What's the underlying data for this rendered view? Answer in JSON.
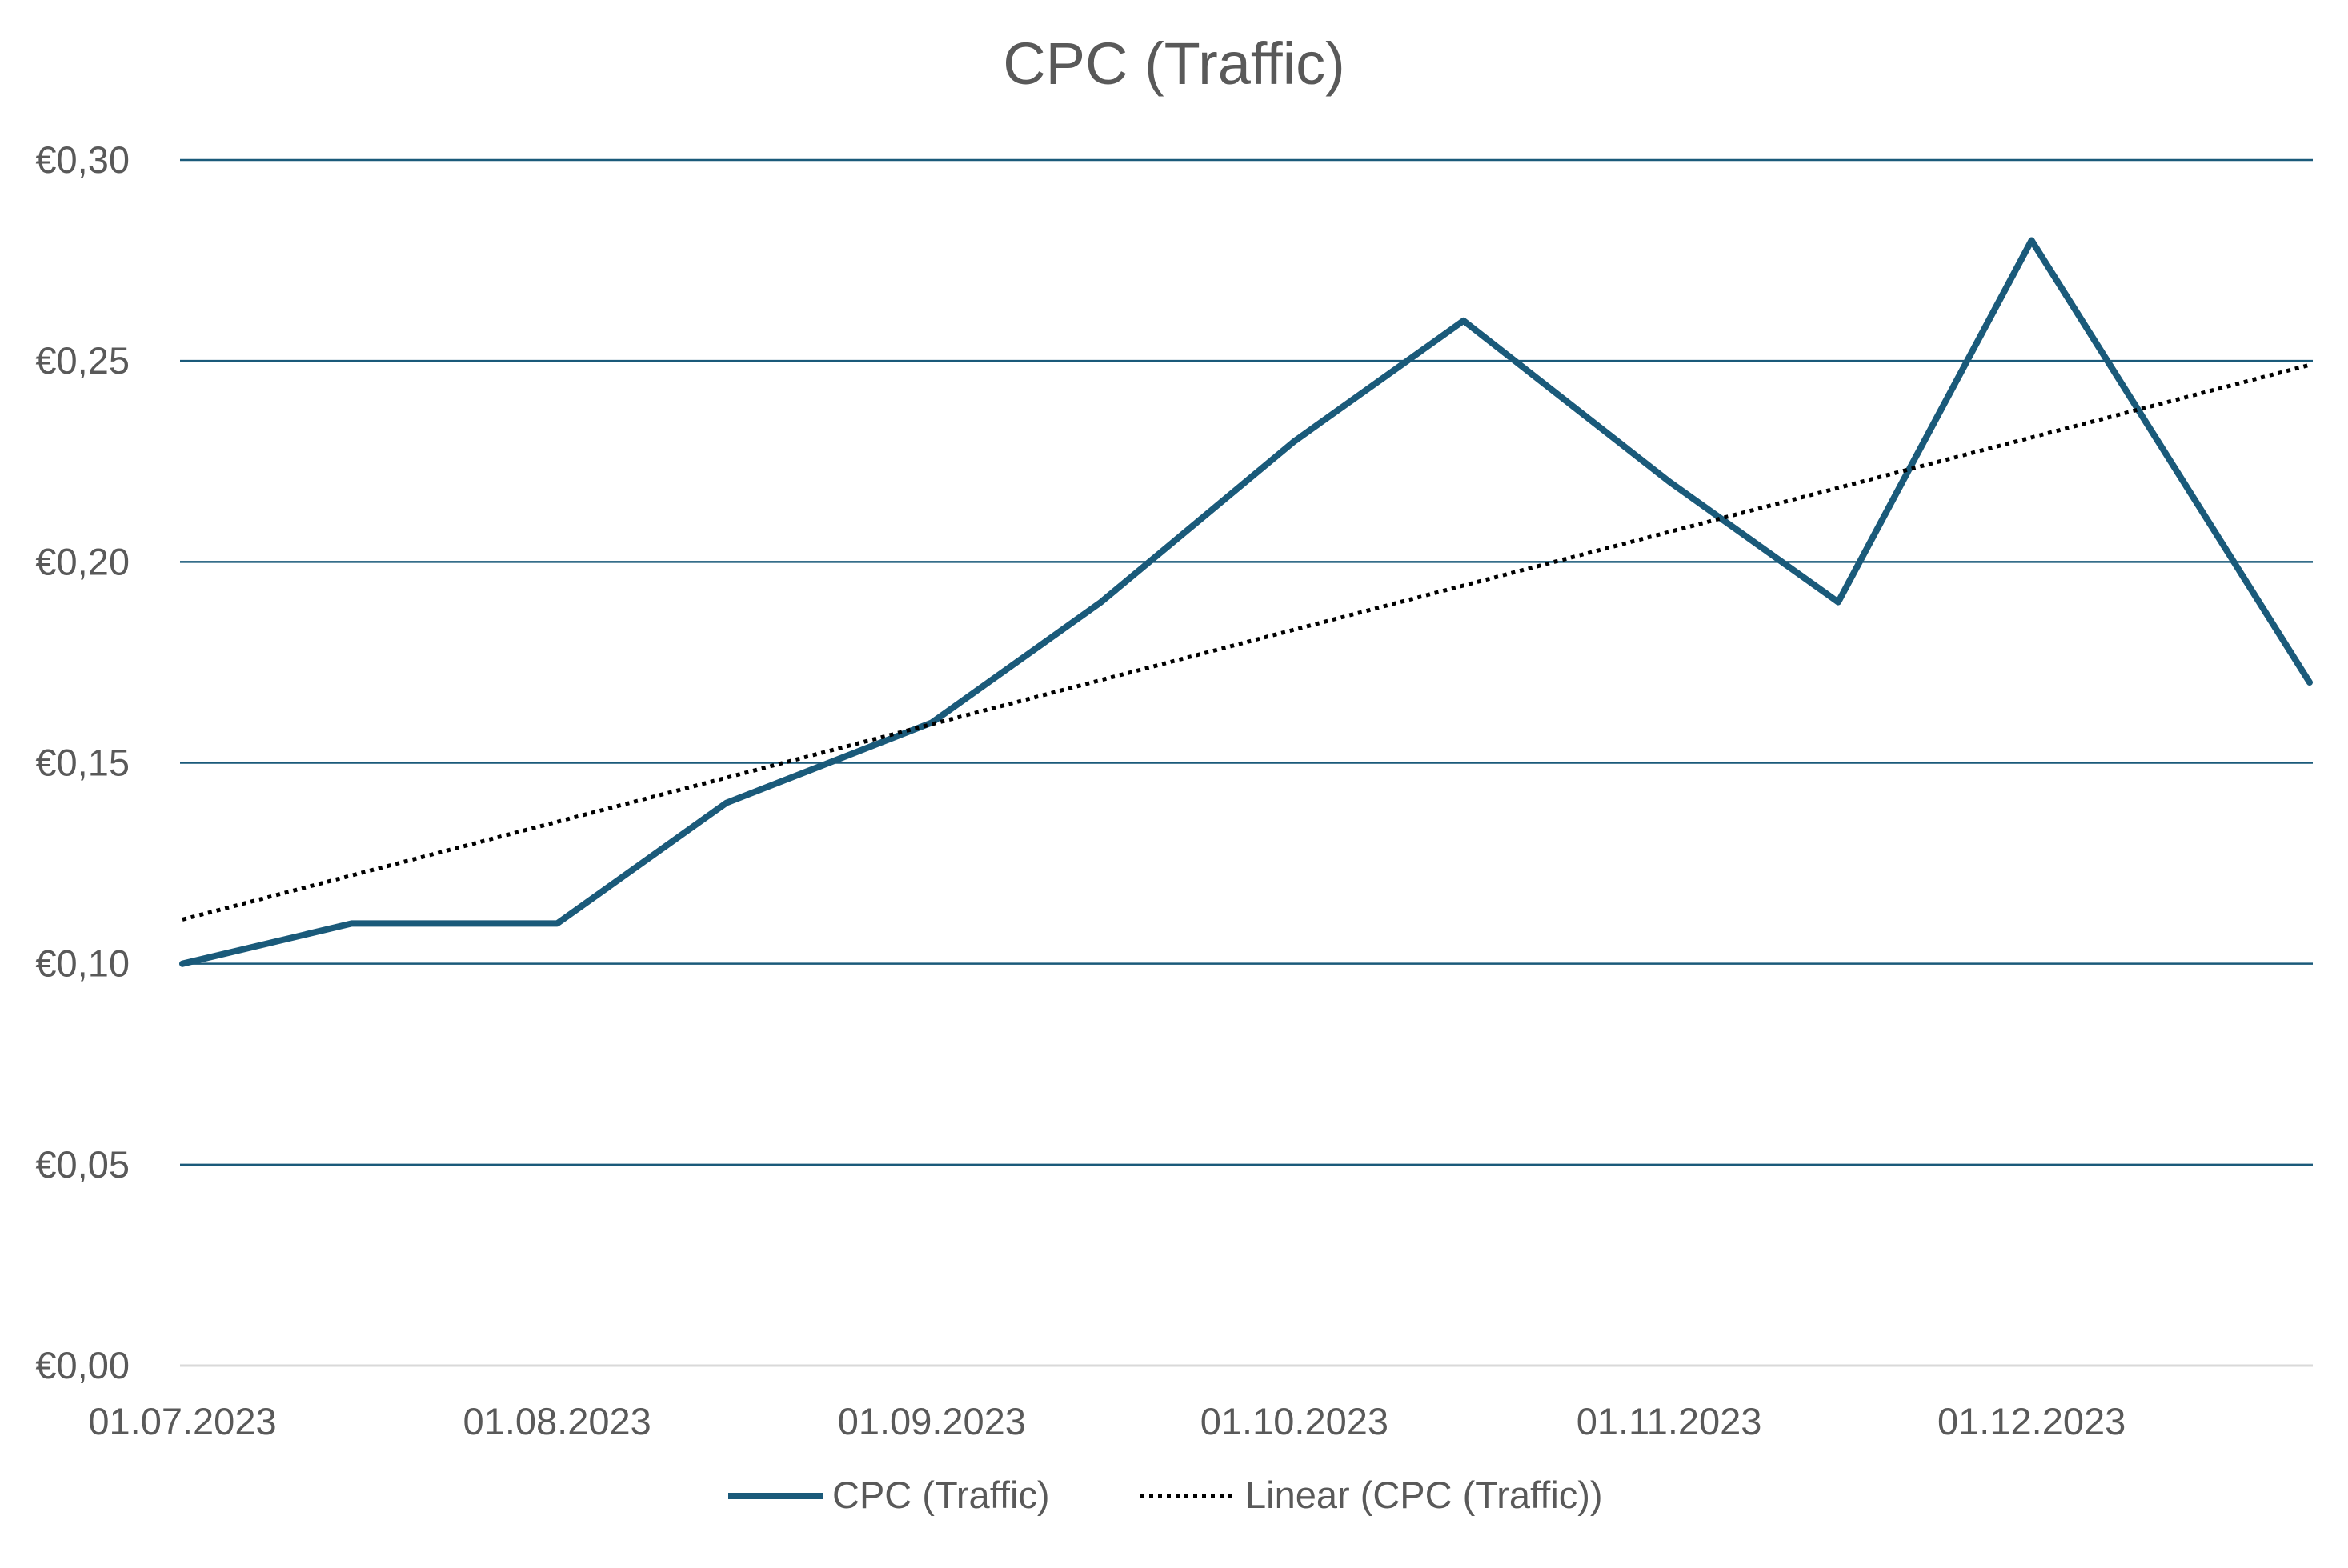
{
  "chart_data": {
    "type": "line",
    "title": "CPC (Traffic)",
    "xlabel": "",
    "ylabel": "",
    "ylim": [
      0,
      0.3
    ],
    "y_ticks": [
      0,
      0.05,
      0.1,
      0.15,
      0.2,
      0.25,
      0.3
    ],
    "y_tick_labels": [
      "€0,00",
      "€0,05",
      "€0,10",
      "€0,15",
      "€0,20",
      "€0,25",
      "€0,30"
    ],
    "x_tick_labels": [
      "01.07.2023",
      "01.08.2023",
      "01.09.2023",
      "01.10.2023",
      "01.11.2023",
      "01.12.2023"
    ],
    "x_tick_dates": [
      "2023-07-01",
      "2023-08-01",
      "2023-09-01",
      "2023-10-01",
      "2023-11-01",
      "2023-12-01"
    ],
    "xlim": [
      "2023-07-01",
      "2023-12-24"
    ],
    "grid": true,
    "legend_position": "bottom",
    "series": [
      {
        "name": "CPC (Traffic)",
        "color": "#1a5a7a",
        "style": "solid",
        "x": [
          "2023-07-01",
          "2023-07-15",
          "2023-08-01",
          "2023-08-15",
          "2023-09-01",
          "2023-09-15",
          "2023-10-01",
          "2023-10-15",
          "2023-11-01",
          "2023-11-15",
          "2023-12-01",
          "2023-12-24"
        ],
        "values": [
          0.1,
          0.11,
          0.11,
          0.14,
          0.16,
          0.19,
          0.23,
          0.26,
          0.22,
          0.19,
          0.28,
          0.17
        ]
      },
      {
        "name": "Linear (CPC (Traffic))",
        "color": "#000000",
        "style": "dotted",
        "x": [
          "2023-07-01",
          "2023-12-24"
        ],
        "values": [
          0.111,
          0.249
        ]
      }
    ],
    "colors": {
      "grid": "#1a5a7a",
      "axis": "#d9d9d9",
      "text": "#595959"
    }
  }
}
